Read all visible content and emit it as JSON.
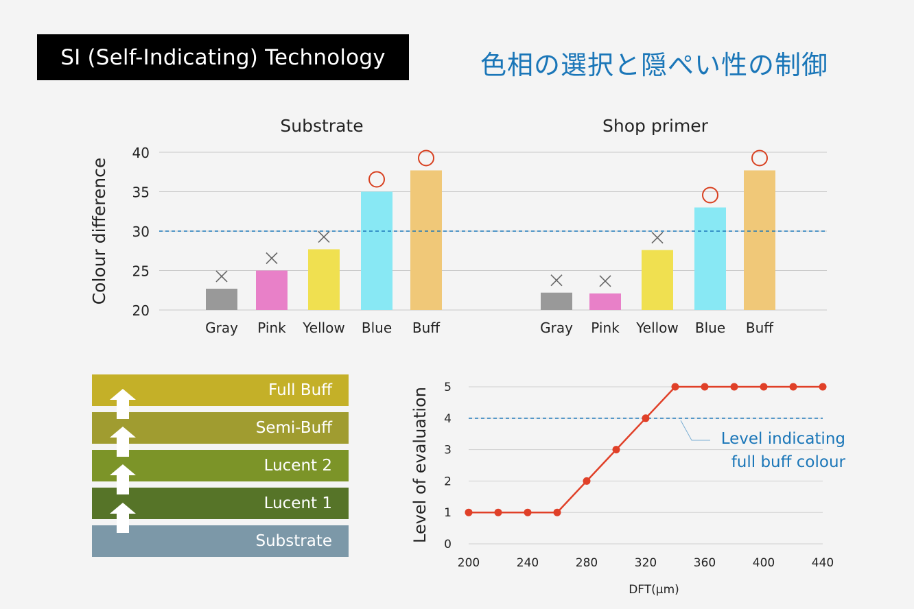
{
  "header": {
    "title": "SI (Self-Indicating) Technology",
    "subtitle_jp": "色相の選択と隠ぺい性の制御"
  },
  "chart_data": [
    {
      "type": "bar",
      "title": "Substrate",
      "ylabel": "Colour difference",
      "ylim": [
        20,
        40
      ],
      "yticks": [
        20,
        25,
        30,
        35,
        40
      ],
      "threshold": 30,
      "categories": [
        "Gray",
        "Pink",
        "Yellow",
        "Blue",
        "Buff"
      ],
      "values": [
        22.7,
        25.0,
        27.7,
        35.0,
        37.7
      ],
      "colors": [
        "#999999",
        "#e880c8",
        "#f0e050",
        "#88e8f4",
        "#f0c878"
      ],
      "marks": [
        "×",
        "×",
        "×",
        "○",
        "○"
      ]
    },
    {
      "type": "bar",
      "title": "Shop primer",
      "ylim": [
        20,
        40
      ],
      "threshold": 30,
      "categories": [
        "Gray",
        "Pink",
        "Yellow",
        "Blue",
        "Buff"
      ],
      "values": [
        22.2,
        22.1,
        27.6,
        33.0,
        37.7
      ],
      "colors": [
        "#999999",
        "#e880c8",
        "#f0e050",
        "#88e8f4",
        "#f0c878"
      ],
      "marks": [
        "×",
        "×",
        "×",
        "○",
        "○"
      ]
    },
    {
      "type": "line",
      "ylabel": "Level of evaluation",
      "xlabel": "DFT(μm)",
      "xlim": [
        200,
        440
      ],
      "ylim": [
        0,
        5
      ],
      "xticks": [
        200,
        240,
        280,
        320,
        360,
        400,
        440
      ],
      "yticks": [
        0,
        1,
        2,
        3,
        4,
        5
      ],
      "threshold": 4,
      "annotation": [
        "Level indicating",
        "full buff colour"
      ],
      "x": [
        200,
        220,
        240,
        260,
        280,
        300,
        320,
        340,
        360,
        380,
        400,
        420,
        440
      ],
      "y": [
        1,
        1,
        1,
        1,
        2,
        3,
        4,
        5,
        5,
        5,
        5,
        5,
        5
      ],
      "color": "#e04028"
    }
  ],
  "layers": [
    {
      "label": "Full Buff",
      "color": "#c4b028"
    },
    {
      "label": "Semi-Buff",
      "color": "#a09c30"
    },
    {
      "label": "Lucent 2",
      "color": "#7c9428"
    },
    {
      "label": "Lucent 1",
      "color": "#567428"
    },
    {
      "label": "Substrate",
      "color": "#7c98a8"
    }
  ]
}
